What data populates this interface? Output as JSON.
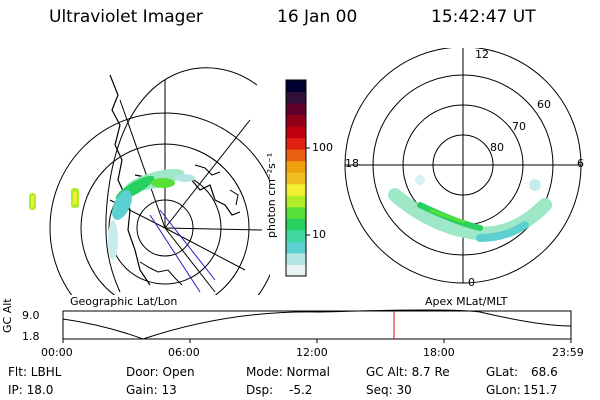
{
  "header": {
    "instrument": "Ultraviolet Imager",
    "date": "16 Jan 00",
    "time": "15:42:47 UT"
  },
  "colorbar": {
    "label": "photon cm⁻²s⁻¹",
    "ticks": [
      "100",
      "10"
    ],
    "colors": [
      "#e8f4f4",
      "#b4e4e4",
      "#5cd0d0",
      "#40d8a0",
      "#28d060",
      "#58e038",
      "#b0ec28",
      "#f0f030",
      "#f0c020",
      "#f0a010",
      "#e86010",
      "#e02010",
      "#c00010",
      "#900018",
      "#600028",
      "#301038",
      "#000030"
    ]
  },
  "geo_panel": {
    "label": "Geographic Lat/Lon"
  },
  "mag_panel": {
    "label": "Apex MLat/MLT",
    "mlt_labels": {
      "top": "12",
      "left": "18",
      "right": "6",
      "bottom": "0"
    },
    "lat_labels": [
      "60",
      "70",
      "80"
    ]
  },
  "timeline": {
    "y_axis_label": "GC Alt",
    "y_ticks": [
      "9.0",
      "1.8"
    ],
    "x_ticks": [
      "00:00",
      "06:00",
      "12:00",
      "18:00",
      "23:59"
    ],
    "current_time_marker": "15:42:47"
  },
  "info": {
    "flt": "Flt: LBHL",
    "ip": "IP: 18.0",
    "door": "Door: Open",
    "gain": "Gain: 13",
    "mode": "Mode: Normal",
    "dsp": "Dsp:",
    "dsp_value": "-5.2",
    "gc_alt": "GC Alt: 8.7 Re",
    "seq": "Seq: 30",
    "glat_label": "GLat:",
    "glat_value": "68.6",
    "glon_label": "GLon:",
    "glon_value": "151.7"
  }
}
